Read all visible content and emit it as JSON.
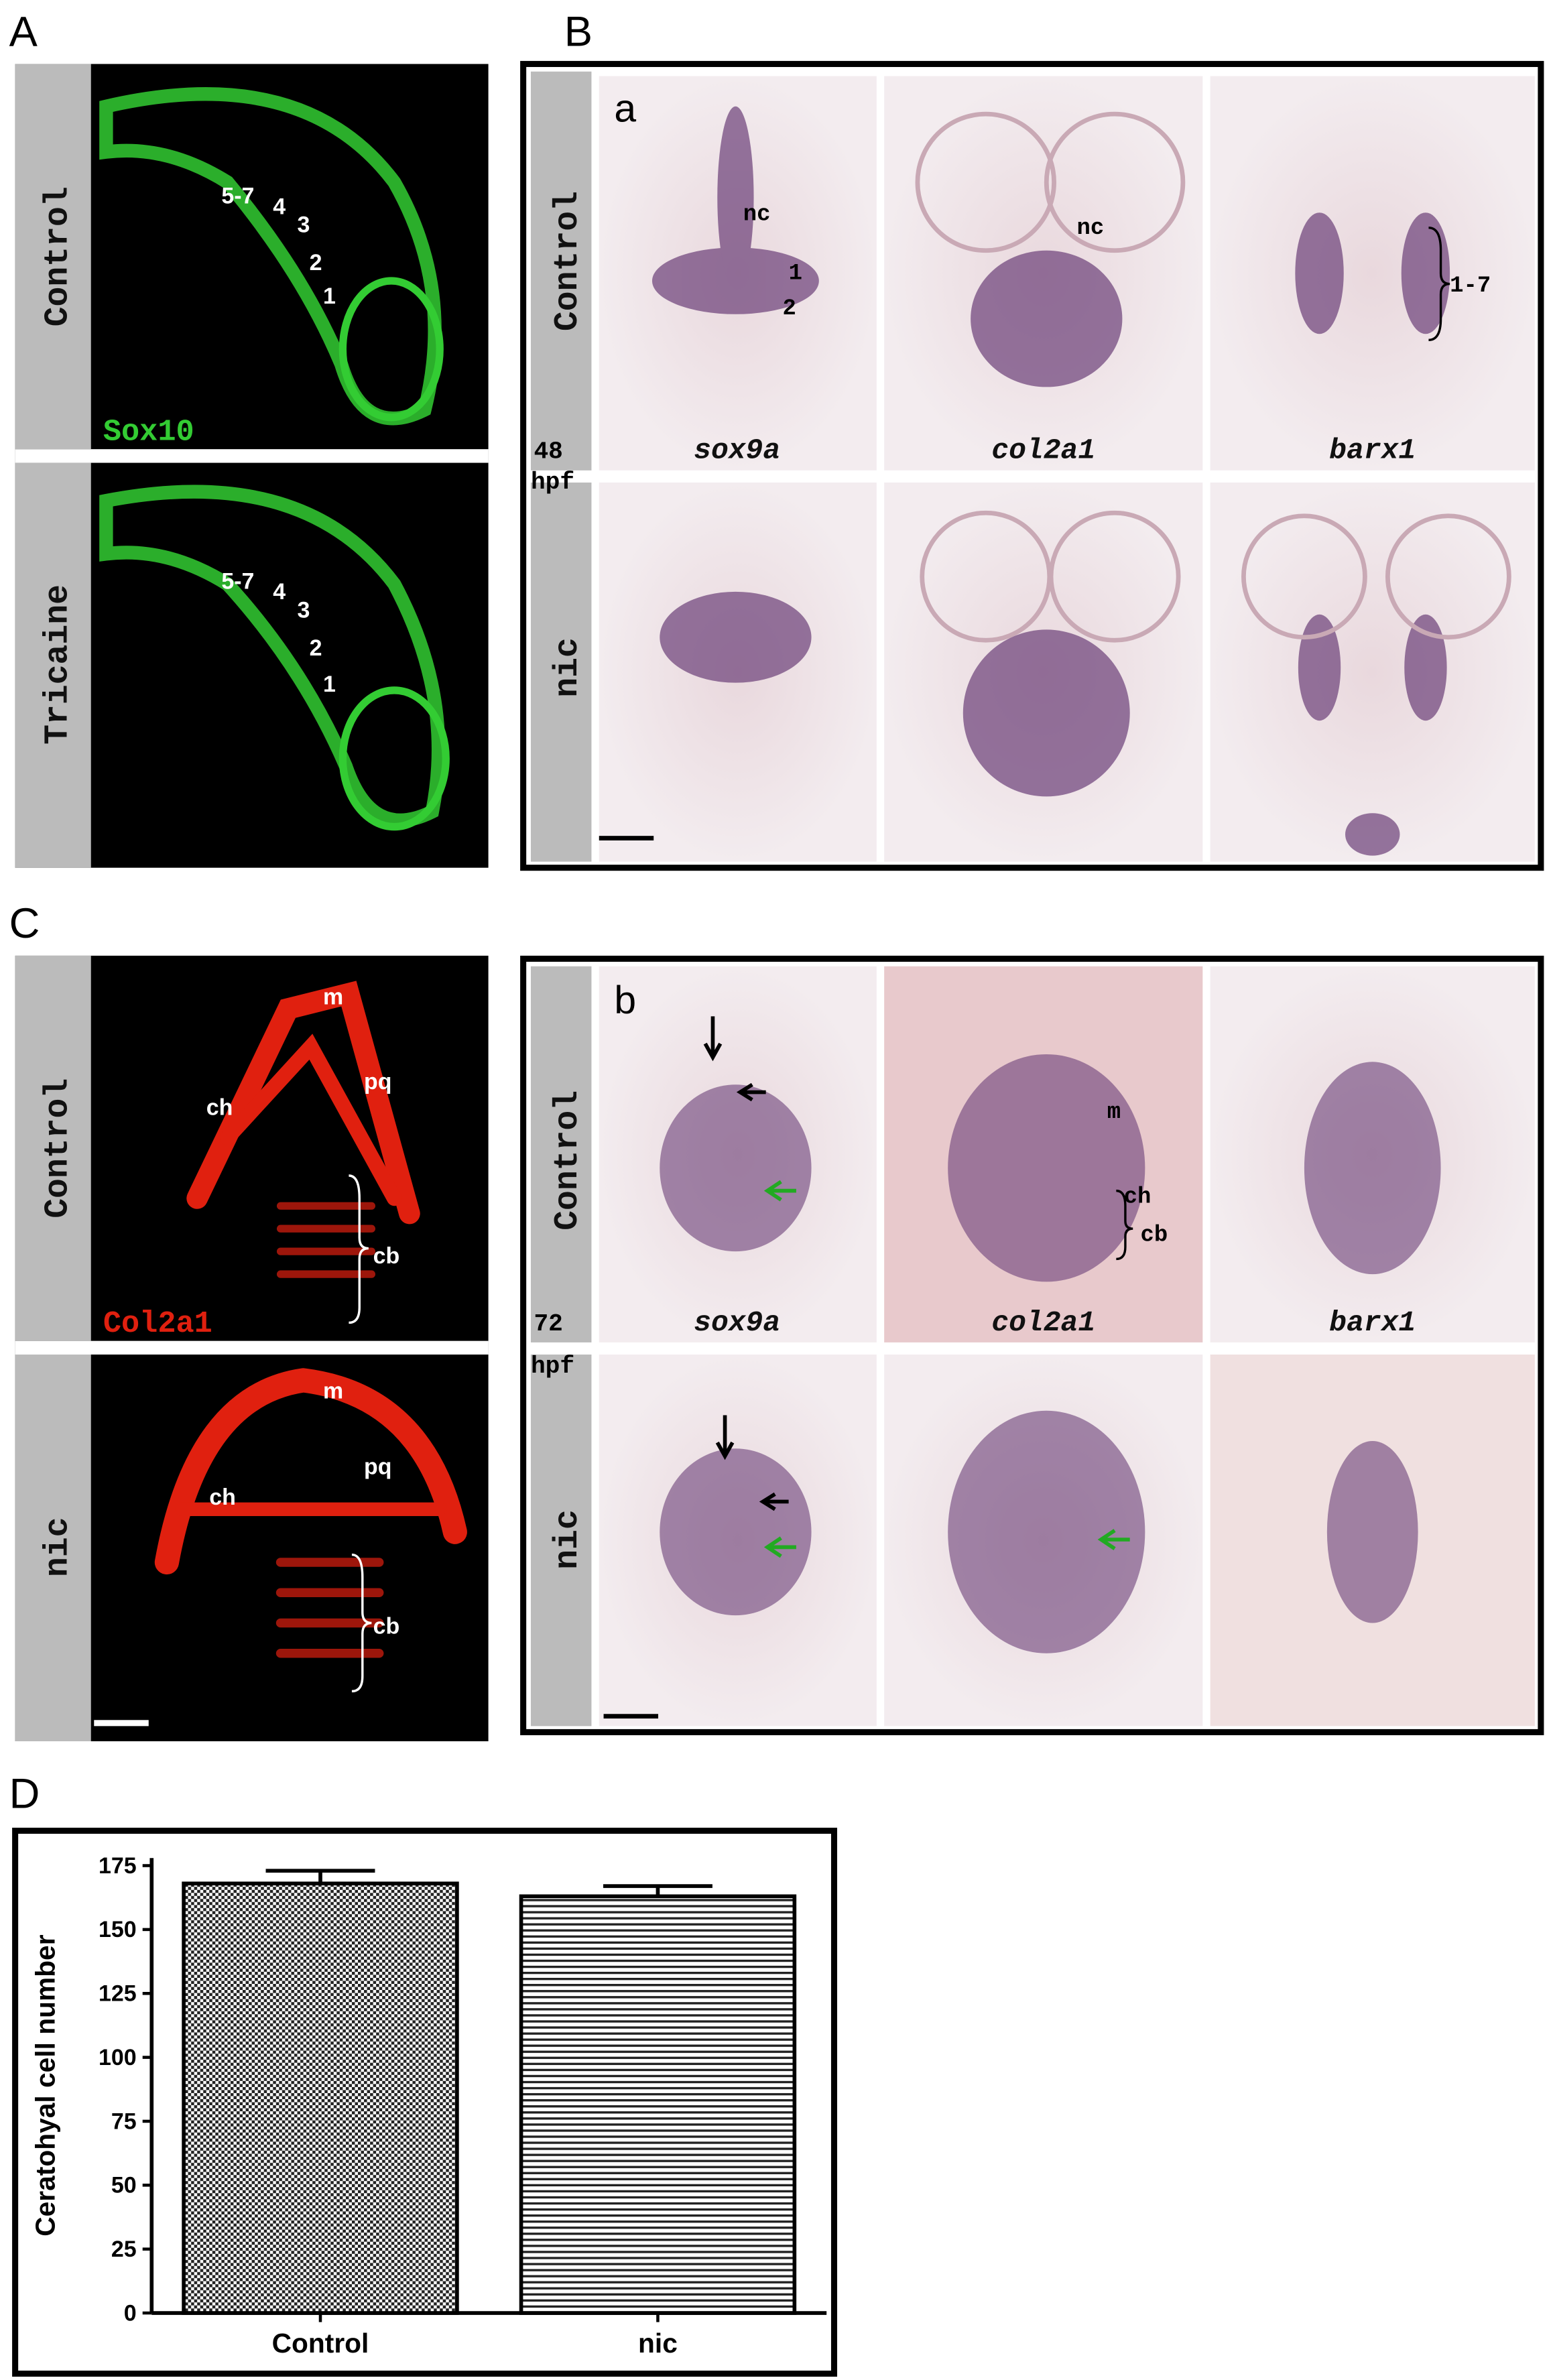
{
  "panel_labels": [
    "A",
    "B",
    "C",
    "D"
  ],
  "panel_a": {
    "rows": [
      "Control",
      "Tricaine"
    ],
    "stain": "Sox10",
    "top_labels": [
      "5-7",
      "4",
      "3",
      "2",
      "1"
    ],
    "bottom_labels": [
      "5-7",
      "4",
      "3",
      "2",
      "1"
    ]
  },
  "panel_b_48": {
    "sub": "a",
    "rows": [
      "Control",
      "nic"
    ],
    "stage": [
      "48",
      "hpf"
    ],
    "genes": [
      "sox9a",
      "col2a1",
      "barx1"
    ],
    "annotations": [
      "nc",
      "1",
      "2",
      "nc",
      "1-7"
    ]
  },
  "panel_c": {
    "rows": [
      "Control",
      "nic"
    ],
    "stain": "Col2a1",
    "top_labels": [
      "m",
      "pq",
      "ch",
      "cb"
    ],
    "bottom_labels": [
      "m",
      "pq",
      "ch",
      "cb"
    ]
  },
  "panel_b_72": {
    "sub": "b",
    "rows": [
      "Control",
      "nic"
    ],
    "stage": [
      "72",
      "hpf"
    ],
    "genes": [
      "sox9a",
      "col2a1",
      "barx1"
    ],
    "annotations": [
      "m",
      "ch",
      "cb"
    ]
  },
  "chart_data": {
    "type": "bar",
    "ylabel": "Ceratohyal cell number",
    "categories": [
      "Control",
      "nic"
    ],
    "values": [
      168,
      163
    ],
    "errors": [
      5,
      4
    ],
    "ylim": [
      0,
      175
    ],
    "yticks": [
      0,
      25,
      50,
      75,
      100,
      125,
      150,
      175
    ]
  }
}
